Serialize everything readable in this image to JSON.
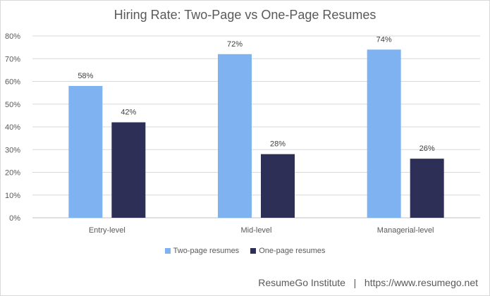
{
  "chart_data": {
    "type": "bar",
    "title": "Hiring Rate: Two-Page vs One-Page Resumes",
    "categories": [
      "Entry-level",
      "Mid-level",
      "Managerial-level"
    ],
    "series": [
      {
        "name": "Two-page resumes",
        "values": [
          58,
          72,
          74
        ],
        "color": "#7fb2f0"
      },
      {
        "name": "One-page resumes",
        "values": [
          42,
          28,
          26
        ],
        "color": "#2e2f57"
      }
    ],
    "data_labels": [
      [
        "58%",
        "72%",
        "74%"
      ],
      [
        "42%",
        "28%",
        "26%"
      ]
    ],
    "y_ticks": [
      "0%",
      "10%",
      "20%",
      "30%",
      "40%",
      "50%",
      "60%",
      "70%",
      "80%"
    ],
    "ylim": [
      0,
      80
    ],
    "grid": true,
    "legend_position": "bottom"
  },
  "footer": {
    "source": "ResumeGo Institute",
    "separator": "|",
    "url": "https://www.resumego.net"
  }
}
